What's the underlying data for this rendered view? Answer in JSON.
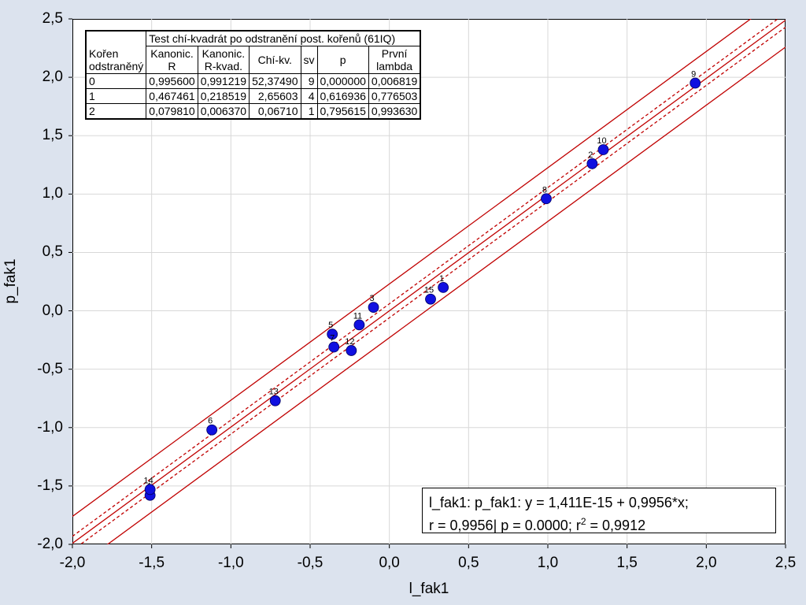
{
  "chart_data": {
    "type": "scatter",
    "xlabel": "l_fak1",
    "ylabel": "p_fak1",
    "xlim": [
      -2.0,
      2.5
    ],
    "ylim": [
      -2.0,
      2.5
    ],
    "x_ticks": [
      "-2,0",
      "-1,5",
      "-1,0",
      "-0,5",
      "0,0",
      "0,5",
      "1,0",
      "1,5",
      "2,0",
      "2,5"
    ],
    "y_ticks": [
      "2,5",
      "2,0",
      "1,5",
      "1,0",
      "0,5",
      "0,0",
      "-0,5",
      "-1,0",
      "-1,5",
      "-2,0"
    ],
    "grid": true,
    "points": [
      {
        "label": "1",
        "x": 0.34,
        "y": 0.2
      },
      {
        "label": "2",
        "x": 1.28,
        "y": 1.26
      },
      {
        "label": "3",
        "x": -0.1,
        "y": 0.03
      },
      {
        "label": "4",
        "x": -1.51,
        "y": -1.58
      },
      {
        "label": "5",
        "x": -0.36,
        "y": -0.2
      },
      {
        "label": "6",
        "x": -1.12,
        "y": -1.02
      },
      {
        "label": "7",
        "x": -0.35,
        "y": -0.31
      },
      {
        "label": "8",
        "x": 0.99,
        "y": 0.96
      },
      {
        "label": "9",
        "x": 1.93,
        "y": 1.95
      },
      {
        "label": "10",
        "x": 1.35,
        "y": 1.38
      },
      {
        "label": "11",
        "x": -0.19,
        "y": -0.12
      },
      {
        "label": "12",
        "x": -0.24,
        "y": -0.34
      },
      {
        "label": "13",
        "x": -0.72,
        "y": -0.77
      },
      {
        "label": "14",
        "x": -1.51,
        "y": -1.53
      },
      {
        "label": "15",
        "x": 0.26,
        "y": 0.1
      }
    ],
    "regression": {
      "intercept": 0.0,
      "slope": 0.9956
    },
    "confidence_offset": 0.06,
    "prediction_offset": 0.23,
    "colors": {
      "point": "#1010e0",
      "line": "#c00000",
      "grid": "#d8d8d8"
    }
  },
  "table": {
    "title": "Test chí-kvadrát po odstranění post. kořenů (61IQ)",
    "row_header_line1": "Kořen",
    "row_header_line2": "odstraněný",
    "columns": [
      {
        "line1": "Kanonic.",
        "line2": "R"
      },
      {
        "line1": "Kanonic.",
        "line2": "R-kvad."
      },
      {
        "line1": "Chí-kv.",
        "line2": ""
      },
      {
        "line1": "sv",
        "line2": ""
      },
      {
        "line1": "p",
        "line2": ""
      },
      {
        "line1": "První",
        "line2": "lambda"
      }
    ],
    "rows": [
      [
        "0",
        "0,995600",
        "0,991219",
        "52,37490",
        "9",
        "0,000000",
        "0,006819"
      ],
      [
        "1",
        "0,467461",
        "0,218519",
        "2,65603",
        "4",
        "0,616936",
        "0,776503"
      ],
      [
        "2",
        "0,079810",
        "0,006370",
        "0,06710",
        "1",
        "0,795615",
        "0,993630"
      ]
    ]
  },
  "equation": {
    "line1": "l_fak1:  p_fak1:   y = 1,411E-15 + 0,9956*x;",
    "line2_prefix": "r = 0,9956| p = 0.0000; r",
    "line2_sup": "2",
    "line2_suffix": " = 0,9912"
  }
}
